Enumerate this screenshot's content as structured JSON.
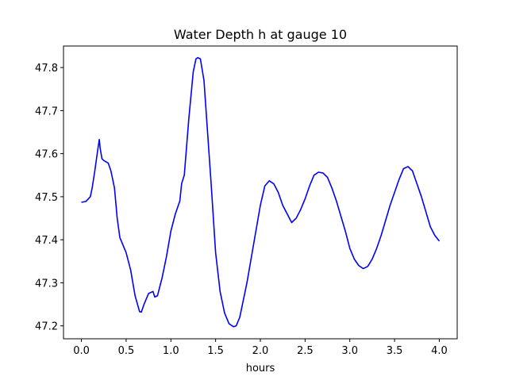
{
  "chart_data": {
    "type": "line",
    "title": "Water Depth h at gauge 10",
    "xlabel": "hours",
    "ylabel": "",
    "xlim": [
      -0.2,
      4.2
    ],
    "ylim": [
      47.17,
      47.85
    ],
    "grid": false,
    "x_ticks": [
      0.0,
      0.5,
      1.0,
      1.5,
      2.0,
      2.5,
      3.0,
      3.5,
      4.0
    ],
    "x_tick_labels": [
      "0.0",
      "0.5",
      "1.0",
      "1.5",
      "2.0",
      "2.5",
      "3.0",
      "3.5",
      "4.0"
    ],
    "y_ticks": [
      47.2,
      47.3,
      47.4,
      47.5,
      47.6,
      47.7,
      47.8
    ],
    "y_tick_labels": [
      "47.2",
      "47.3",
      "47.4",
      "47.5",
      "47.6",
      "47.7",
      "47.8"
    ],
    "colors": {
      "line": "#0000ff",
      "axes": "#000000",
      "background": "#ffffff"
    },
    "series": [
      {
        "x": [
          0.0,
          0.05,
          0.1,
          0.12,
          0.15,
          0.18,
          0.2,
          0.21,
          0.23,
          0.25,
          0.3,
          0.33,
          0.37,
          0.4,
          0.43,
          0.47,
          0.5,
          0.55,
          0.6,
          0.65,
          0.67,
          0.7,
          0.75,
          0.8,
          0.82,
          0.85,
          0.9,
          0.95,
          1.0,
          1.05,
          1.1,
          1.12,
          1.15,
          1.2,
          1.25,
          1.28,
          1.3,
          1.33,
          1.37,
          1.4,
          1.45,
          1.5,
          1.55,
          1.6,
          1.65,
          1.7,
          1.73,
          1.77,
          1.8,
          1.85,
          1.9,
          1.95,
          2.0,
          2.05,
          2.1,
          2.15,
          2.2,
          2.25,
          2.3,
          2.35,
          2.4,
          2.45,
          2.5,
          2.55,
          2.6,
          2.65,
          2.7,
          2.75,
          2.8,
          2.85,
          2.9,
          2.95,
          3.0,
          3.05,
          3.1,
          3.15,
          3.2,
          3.25,
          3.3,
          3.35,
          3.4,
          3.45,
          3.5,
          3.55,
          3.6,
          3.65,
          3.7,
          3.75,
          3.8,
          3.85,
          3.9,
          3.95,
          4.0
        ],
        "y": [
          47.487,
          47.489,
          47.5,
          47.52,
          47.56,
          47.605,
          47.633,
          47.612,
          47.588,
          47.584,
          47.578,
          47.56,
          47.52,
          47.45,
          47.405,
          47.385,
          47.37,
          47.33,
          47.27,
          47.233,
          47.232,
          47.25,
          47.275,
          47.28,
          47.267,
          47.27,
          47.31,
          47.36,
          47.42,
          47.46,
          47.49,
          47.53,
          47.55,
          47.68,
          47.79,
          47.82,
          47.823,
          47.82,
          47.77,
          47.68,
          47.53,
          47.37,
          47.28,
          47.23,
          47.205,
          47.198,
          47.2,
          47.22,
          47.25,
          47.3,
          47.36,
          47.42,
          47.48,
          47.525,
          47.537,
          47.53,
          47.51,
          47.48,
          47.46,
          47.44,
          47.45,
          47.47,
          47.495,
          47.525,
          47.55,
          47.557,
          47.555,
          47.545,
          47.52,
          47.49,
          47.455,
          47.42,
          47.38,
          47.355,
          47.34,
          47.333,
          47.338,
          47.355,
          47.38,
          47.41,
          47.445,
          47.48,
          47.51,
          47.54,
          47.565,
          47.57,
          47.56,
          47.53,
          47.5,
          47.465,
          47.43,
          47.41,
          47.397
        ]
      }
    ]
  }
}
